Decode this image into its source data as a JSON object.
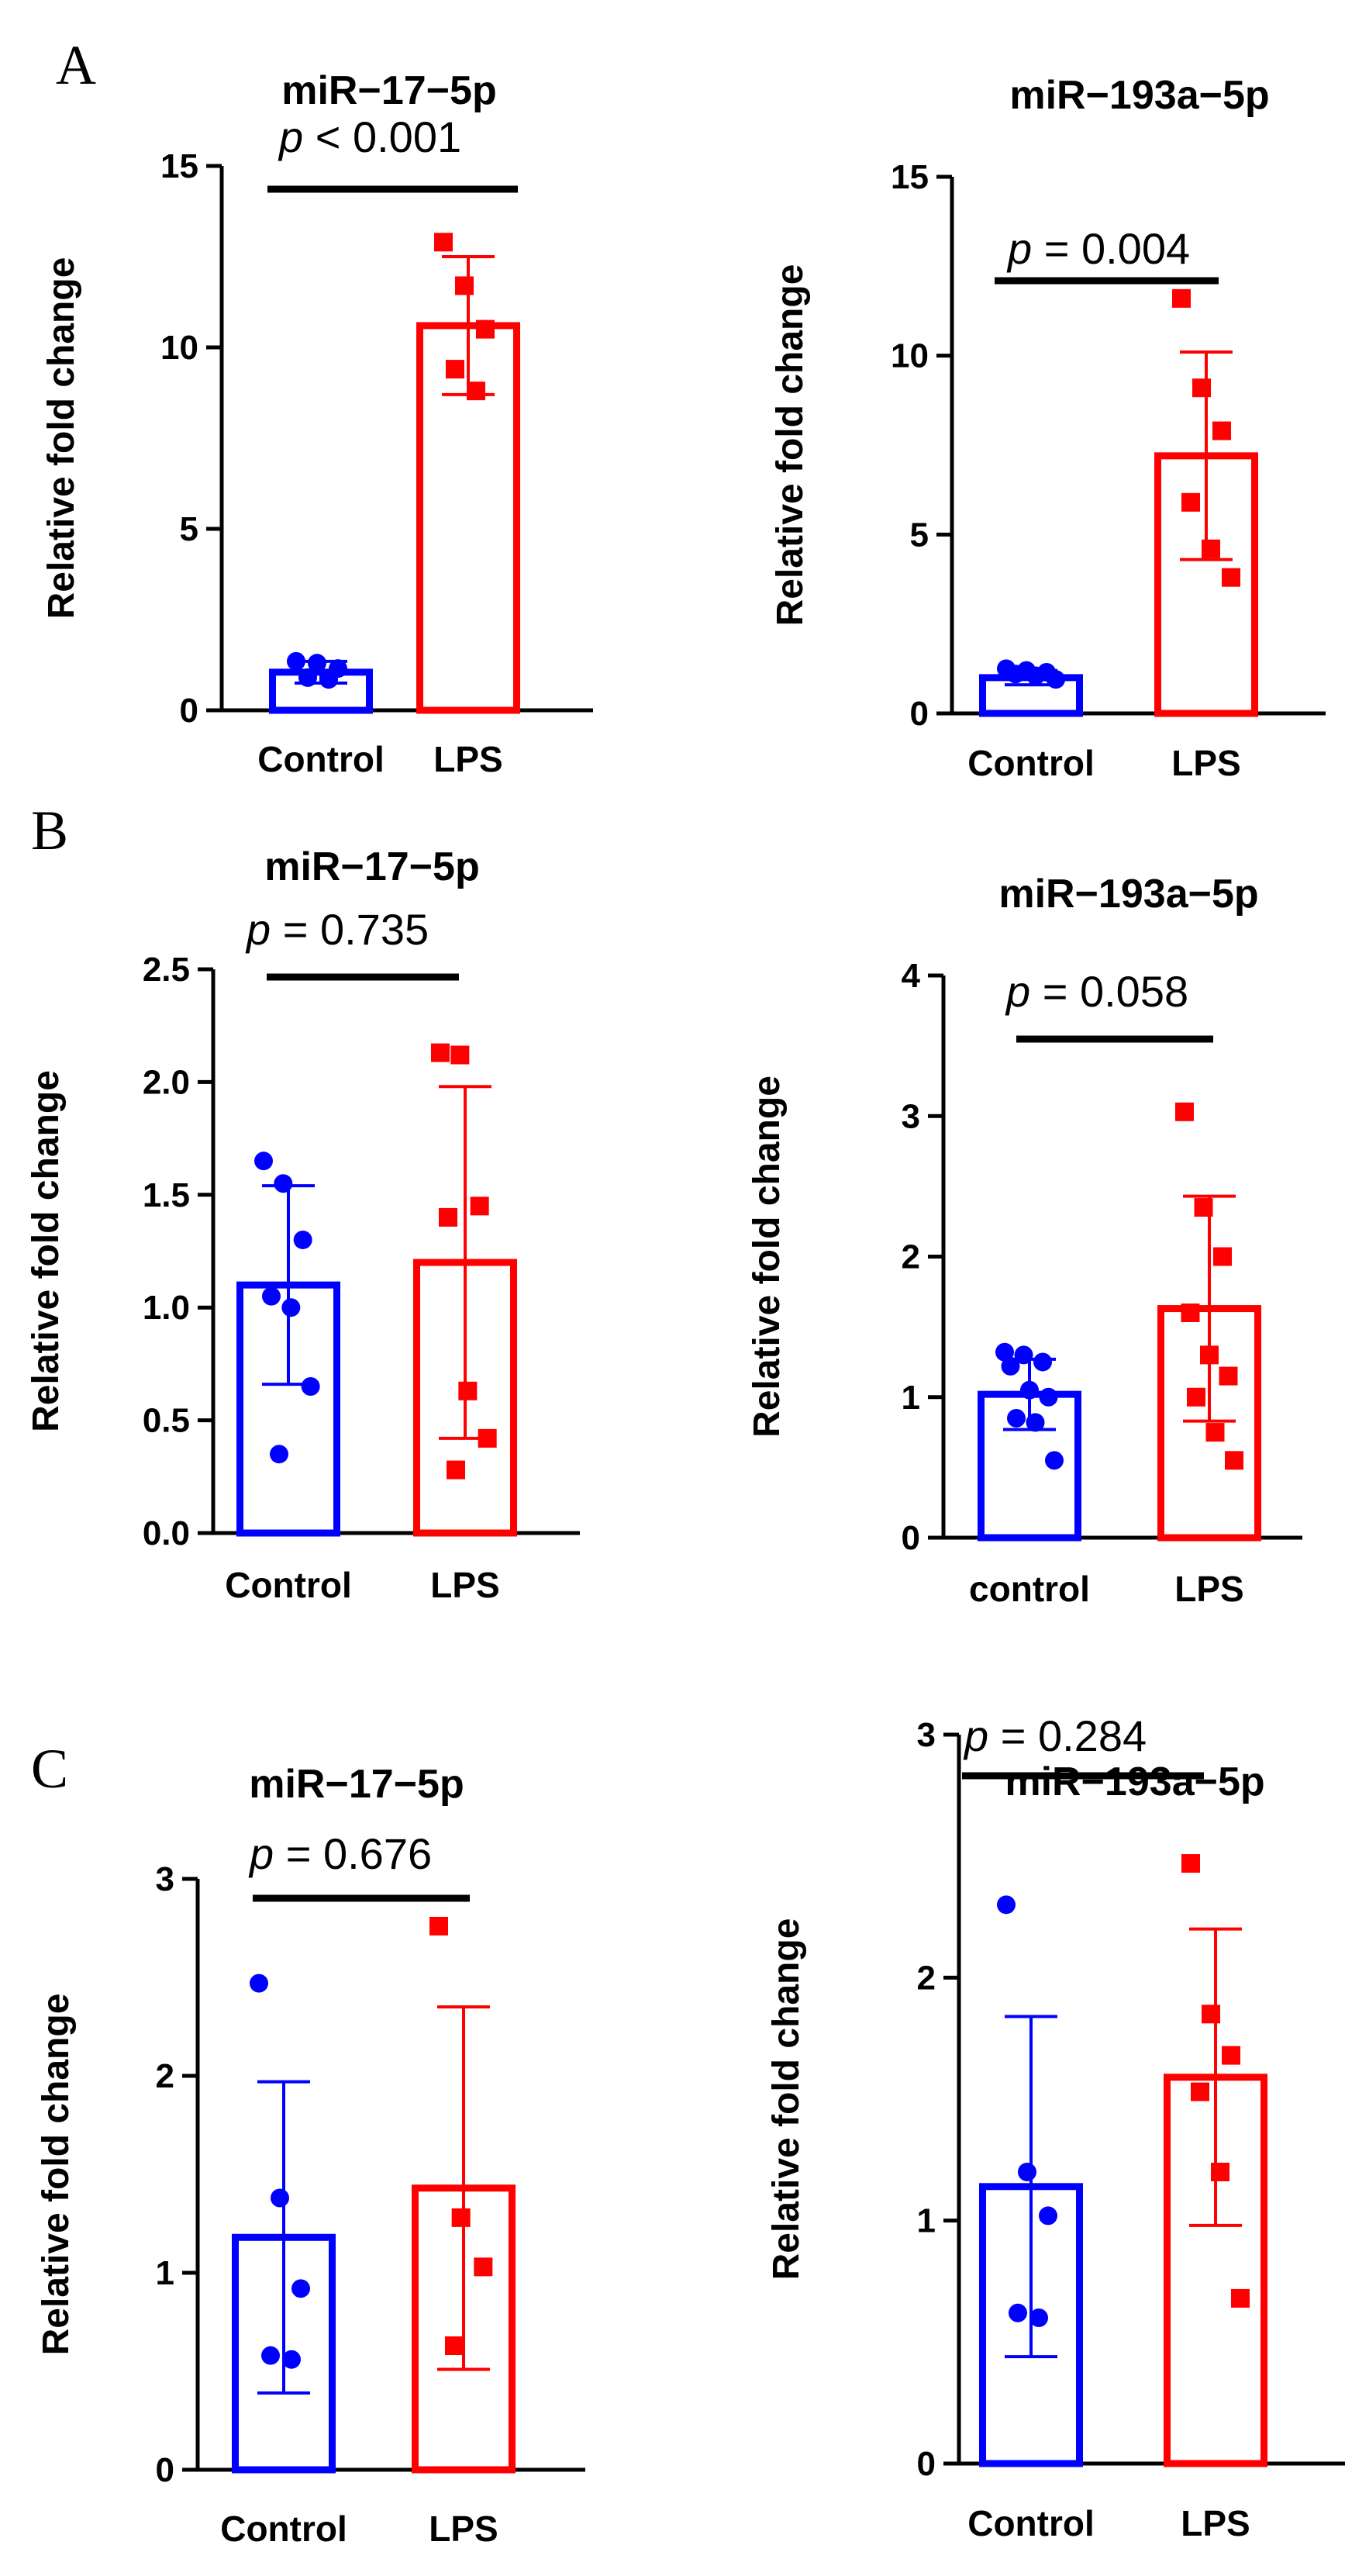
{
  "panels": [
    "A",
    "B",
    "C"
  ],
  "chart_data": [
    {
      "type": "bar",
      "panel": "A",
      "title": "miR−17−5p",
      "p_label": "p",
      "p_value": "< 0.001",
      "ylabel": "Relative fold change",
      "categories": [
        "Control",
        "LPS"
      ],
      "ylim": [
        0,
        15
      ],
      "yticks": [
        "0",
        "5",
        "10",
        "15"
      ],
      "ytick_values": [
        0,
        5,
        10,
        15
      ],
      "means": [
        1.05,
        10.6
      ],
      "sd": [
        0.3,
        1.9
      ],
      "points": [
        [
          1.35,
          1.3,
          1.15,
          0.9,
          0.85
        ],
        [
          12.9,
          11.7,
          10.5,
          9.4,
          8.8
        ]
      ],
      "colors": [
        "#0000ff",
        "#ff0000"
      ]
    },
    {
      "type": "bar",
      "panel": "A",
      "title": "miR−193a−5p",
      "p_label": "p",
      "p_value": "= 0.004",
      "ylabel": "Relative fold change",
      "categories": [
        "Control",
        "LPS"
      ],
      "ylim": [
        0,
        15
      ],
      "yticks": [
        "0",
        "5",
        "10",
        "15"
      ],
      "ytick_values": [
        0,
        5,
        10,
        15
      ],
      "means": [
        1.0,
        7.2
      ],
      "sd": [
        0.2,
        2.9
      ],
      "points": [
        [
          1.25,
          1.2,
          1.15,
          1.1,
          1.05,
          0.95
        ],
        [
          11.6,
          9.1,
          7.9,
          5.9,
          4.6,
          3.8
        ]
      ],
      "colors": [
        "#0000ff",
        "#ff0000"
      ]
    },
    {
      "type": "bar",
      "panel": "B",
      "title": "miR−17−5p",
      "p_label": "p",
      "p_value": "= 0.735",
      "ylabel": "Relative fold change",
      "categories": [
        "Control",
        "LPS"
      ],
      "ylim": [
        0,
        2.5
      ],
      "yticks": [
        "0.0",
        "0.5",
        "1.0",
        "1.5",
        "2.0",
        "2.5"
      ],
      "ytick_values": [
        0,
        0.5,
        1.0,
        1.5,
        2.0,
        2.5
      ],
      "means": [
        1.1,
        1.2
      ],
      "sd": [
        0.44,
        0.78
      ],
      "points": [
        [
          1.65,
          1.55,
          1.3,
          1.05,
          1.0,
          0.65,
          0.35
        ],
        [
          2.13,
          2.12,
          1.45,
          1.4,
          0.63,
          0.42,
          0.28
        ]
      ],
      "colors": [
        "#0000ff",
        "#ff0000"
      ]
    },
    {
      "type": "bar",
      "panel": "B",
      "title": "miR−193a−5p",
      "p_label": "p",
      "p_value": "= 0.058",
      "ylabel": "Relative fold change",
      "categories": [
        "control",
        "LPS"
      ],
      "ylim": [
        0,
        4
      ],
      "yticks": [
        "0",
        "1",
        "2",
        "3",
        "4"
      ],
      "ytick_values": [
        0,
        1,
        2,
        3,
        4
      ],
      "means": [
        1.02,
        1.63
      ],
      "sd": [
        0.25,
        0.8
      ],
      "points": [
        [
          1.32,
          1.3,
          1.25,
          1.22,
          1.05,
          1.0,
          0.85,
          0.82,
          0.55
        ],
        [
          3.03,
          2.35,
          2.0,
          1.6,
          1.3,
          1.15,
          1.0,
          0.75,
          0.55
        ]
      ],
      "colors": [
        "#0000ff",
        "#ff0000"
      ]
    },
    {
      "type": "bar",
      "panel": "C",
      "title": "miR−17−5p",
      "p_label": "p",
      "p_value": "= 0.676",
      "ylabel": "Relative fold change",
      "categories": [
        "Control",
        "LPS"
      ],
      "ylim": [
        0,
        3
      ],
      "yticks": [
        "0",
        "1",
        "2",
        "3"
      ],
      "ytick_values": [
        0,
        1,
        2,
        3
      ],
      "means": [
        1.18,
        1.43
      ],
      "sd": [
        0.79,
        0.92
      ],
      "points": [
        [
          2.47,
          1.38,
          0.92,
          0.58,
          0.56
        ],
        [
          2.76,
          1.28,
          1.03,
          0.63
        ]
      ],
      "colors": [
        "#0000ff",
        "#ff0000"
      ]
    },
    {
      "type": "bar",
      "panel": "C",
      "title": "miR−193a−5p",
      "p_label": "p",
      "p_value": "= 0.284",
      "ylabel": "Relative fold change",
      "categories": [
        "Control",
        "LPS"
      ],
      "ylim": [
        0,
        3
      ],
      "yticks": [
        "0",
        "1",
        "2",
        "3"
      ],
      "ytick_values": [
        0,
        1,
        2,
        3
      ],
      "means": [
        1.14,
        1.59
      ],
      "sd": [
        0.7,
        0.61
      ],
      "points": [
        [
          2.3,
          1.2,
          1.02,
          0.62,
          0.6
        ],
        [
          2.47,
          1.85,
          1.68,
          1.53,
          1.2,
          0.68
        ]
      ],
      "colors": [
        "#0000ff",
        "#ff0000"
      ]
    }
  ]
}
